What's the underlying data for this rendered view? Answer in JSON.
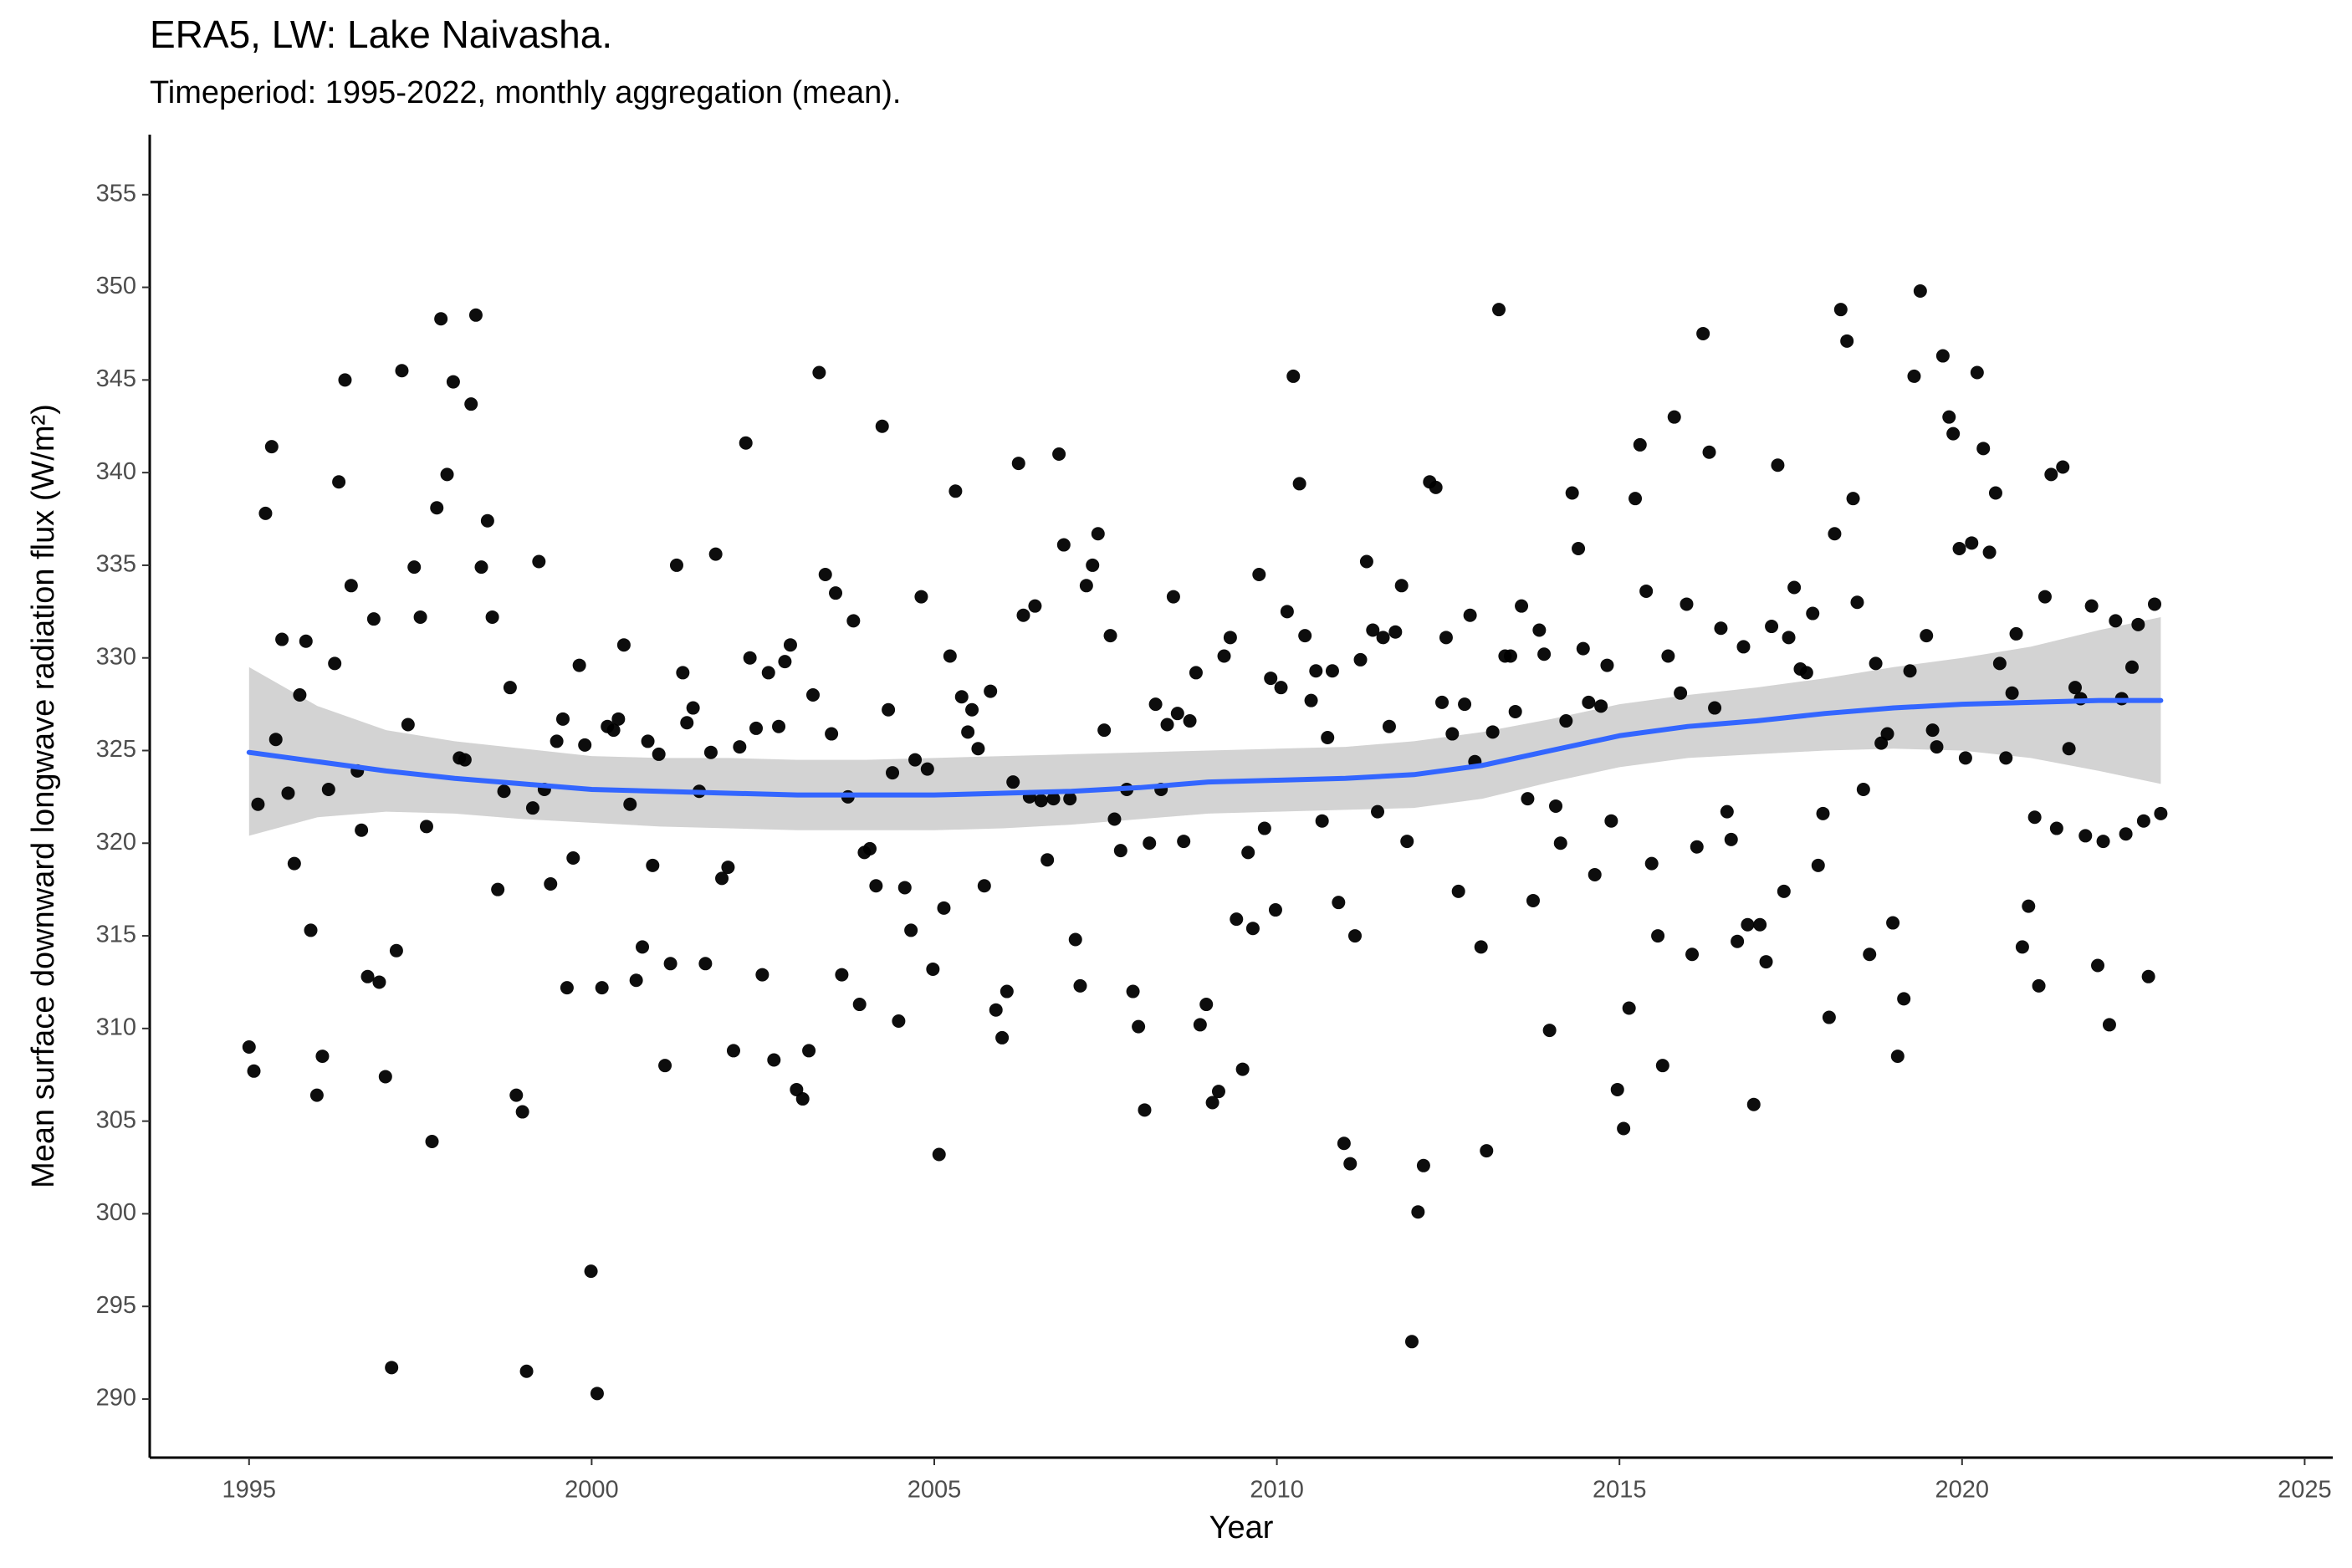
{
  "chart_data": {
    "type": "scatter",
    "title": "ERA5, LW: Lake Naivasha.",
    "subtitle": "Timeperiod: 1995-2022, monthly aggregation (mean).",
    "xlabel": "Year",
    "ylabel": "Mean surface downward longwave radiation flux (W/m²)",
    "color": "#000000",
    "x": [
      1995.0,
      1995.07,
      1995.13,
      1995.24,
      1995.33,
      1995.39,
      1995.48,
      1995.57,
      1995.66,
      1995.74,
      1995.83,
      1995.9,
      1995.99,
      1996.07,
      1996.16,
      1996.25,
      1996.31,
      1996.4,
      1996.49,
      1996.58,
      1996.64,
      1996.73,
      1996.82,
      1996.9,
      1996.99,
      1997.08,
      1997.15,
      1997.23,
      1997.32,
      1997.41,
      1997.5,
      1997.59,
      1997.67,
      1997.74,
      1997.8,
      1997.89,
      1997.98,
      1998.07,
      1998.15,
      1998.24,
      1998.31,
      1998.39,
      1998.48,
      1998.55,
      1998.63,
      1998.72,
      1998.81,
      1998.9,
      1998.99,
      1999.05,
      1999.14,
      1999.23,
      1999.31,
      1999.4,
      1999.49,
      1999.58,
      1999.64,
      1999.73,
      1999.82,
      1999.9,
      1999.99,
      2000.08,
      2000.15,
      2000.23,
      2000.32,
      2000.39,
      2000.47,
      2000.56,
      2000.65,
      2000.74,
      2000.82,
      2000.89,
      2000.98,
      2001.07,
      2001.15,
      2001.24,
      2001.33,
      2001.39,
      2001.48,
      2001.57,
      2001.66,
      2001.74,
      2001.81,
      2001.9,
      2001.99,
      2002.07,
      2002.16,
      2002.25,
      2002.31,
      2002.4,
      2002.49,
      2002.58,
      2002.66,
      2002.73,
      2002.82,
      2002.9,
      2002.99,
      2003.08,
      2003.17,
      2003.23,
      2003.32,
      2003.41,
      2003.5,
      2003.56,
      2003.65,
      2003.74,
      2003.82,
      2003.91,
      2003.98,
      2004.06,
      2004.15,
      2004.24,
      2004.33,
      2004.39,
      2004.48,
      2004.57,
      2004.66,
      2004.72,
      2004.81,
      2004.9,
      2004.98,
      2005.07,
      2005.14,
      2005.23,
      2005.31,
      2005.4,
      2005.49,
      2005.55,
      2005.64,
      2005.73,
      2005.82,
      2005.9,
      2005.99,
      2006.06,
      2006.15,
      2006.23,
      2006.3,
      2006.39,
      2006.47,
      2006.56,
      2006.65,
      2006.74,
      2006.82,
      2006.89,
      2006.98,
      2007.06,
      2007.13,
      2007.22,
      2007.31,
      2007.39,
      2007.48,
      2007.57,
      2007.63,
      2007.72,
      2007.81,
      2007.9,
      2007.98,
      2008.07,
      2008.14,
      2008.23,
      2008.31,
      2008.4,
      2008.49,
      2008.55,
      2008.64,
      2008.73,
      2008.82,
      2008.88,
      2008.97,
      2009.06,
      2009.15,
      2009.23,
      2009.32,
      2009.41,
      2009.5,
      2009.58,
      2009.65,
      2009.74,
      2009.82,
      2009.91,
      2009.98,
      2010.06,
      2010.15,
      2010.24,
      2010.33,
      2010.41,
      2010.5,
      2010.57,
      2010.66,
      2010.74,
      2010.81,
      2010.9,
      2010.98,
      2011.07,
      2011.14,
      2011.22,
      2011.31,
      2011.4,
      2011.47,
      2011.55,
      2011.64,
      2011.73,
      2011.82,
      2011.9,
      2011.97,
      2012.06,
      2012.14,
      2012.23,
      2012.32,
      2012.41,
      2012.47,
      2012.56,
      2012.65,
      2012.74,
      2012.82,
      2012.89,
      2012.98,
      2013.06,
      2013.15,
      2013.24,
      2013.33,
      2013.41,
      2013.48,
      2013.57,
      2013.66,
      2013.74,
      2013.83,
      2013.9,
      2013.98,
      2014.07,
      2014.14,
      2014.22,
      2014.31,
      2014.4,
      2014.47,
      2014.55,
      2014.64,
      2014.73,
      2014.82,
      2014.88,
      2014.97,
      2015.06,
      2015.14,
      2015.23,
      2015.3,
      2015.39,
      2015.47,
      2015.56,
      2015.63,
      2015.71,
      2015.8,
      2015.89,
      2015.98,
      2016.06,
      2016.13,
      2016.22,
      2016.31,
      2016.39,
      2016.48,
      2016.57,
      2016.63,
      2016.72,
      2016.81,
      2016.87,
      2016.96,
      2017.05,
      2017.14,
      2017.22,
      2017.31,
      2017.4,
      2017.47,
      2017.55,
      2017.64,
      2017.73,
      2017.82,
      2017.9,
      2017.97,
      2018.06,
      2018.14,
      2018.23,
      2018.32,
      2018.41,
      2018.47,
      2018.56,
      2018.65,
      2018.74,
      2018.82,
      2018.91,
      2018.99,
      2019.06,
      2019.15,
      2019.24,
      2019.3,
      2019.39,
      2019.48,
      2019.57,
      2019.63,
      2019.72,
      2019.81,
      2019.87,
      2019.96,
      2020.05,
      2020.14,
      2020.22,
      2020.31,
      2020.4,
      2020.49,
      2020.55,
      2020.64,
      2020.73,
      2020.79,
      2020.88,
      2020.97,
      2021.06,
      2021.12,
      2021.21,
      2021.3,
      2021.38,
      2021.47,
      2021.56,
      2021.65,
      2021.73,
      2021.8,
      2021.89,
      2021.98,
      2022.06,
      2022.15,
      2022.24,
      2022.33,
      2022.39,
      2022.48,
      2022.57,
      2022.65,
      2022.72,
      2022.81,
      2022.9
    ],
    "values": [
      309.0,
      307.7,
      322.1,
      337.8,
      341.4,
      325.6,
      331.0,
      322.7,
      318.9,
      328.0,
      330.9,
      315.3,
      306.4,
      308.5,
      322.9,
      329.7,
      339.5,
      345.0,
      333.9,
      323.9,
      320.7,
      312.8,
      332.1,
      312.5,
      307.4,
      291.7,
      314.2,
      345.5,
      326.4,
      334.9,
      332.2,
      320.9,
      303.9,
      338.1,
      348.3,
      339.9,
      344.9,
      324.6,
      324.5,
      343.7,
      348.5,
      334.9,
      337.4,
      332.2,
      317.5,
      322.8,
      328.4,
      306.4,
      305.5,
      291.5,
      321.9,
      335.2,
      322.9,
      317.8,
      325.5,
      326.7,
      312.2,
      319.2,
      329.6,
      325.3,
      296.9,
      290.3,
      312.2,
      326.3,
      326.1,
      326.7,
      330.7,
      322.1,
      312.6,
      314.4,
      325.5,
      318.8,
      324.8,
      308.0,
      313.5,
      335.0,
      329.2,
      326.5,
      327.3,
      322.8,
      313.5,
      324.9,
      335.6,
      318.1,
      318.7,
      308.8,
      325.2,
      341.6,
      330.0,
      326.2,
      312.9,
      329.2,
      308.3,
      326.3,
      329.8,
      330.7,
      306.7,
      306.2,
      308.8,
      328.0,
      345.4,
      334.5,
      325.9,
      333.5,
      312.9,
      322.5,
      332.0,
      311.3,
      319.5,
      319.7,
      317.7,
      342.5,
      327.2,
      323.8,
      310.4,
      317.6,
      315.3,
      324.5,
      333.3,
      324.0,
      313.2,
      303.2,
      316.5,
      330.1,
      339.0,
      327.9,
      326.0,
      327.2,
      325.1,
      317.7,
      328.2,
      311.0,
      309.5,
      312.0,
      323.3,
      340.5,
      332.3,
      322.5,
      332.8,
      322.3,
      319.1,
      322.4,
      341.0,
      336.1,
      322.4,
      314.8,
      312.3,
      333.9,
      335.0,
      336.7,
      326.1,
      331.2,
      321.3,
      319.6,
      322.9,
      312.0,
      310.1,
      305.6,
      320.0,
      327.5,
      322.9,
      326.4,
      333.3,
      327.0,
      320.1,
      326.6,
      329.2,
      310.2,
      311.3,
      306.0,
      306.6,
      330.1,
      331.1,
      315.9,
      307.8,
      319.5,
      315.4,
      334.5,
      320.8,
      328.9,
      316.4,
      328.4,
      332.5,
      345.2,
      339.4,
      331.2,
      327.7,
      329.3,
      321.2,
      325.7,
      329.3,
      316.8,
      303.8,
      302.7,
      315.0,
      329.9,
      335.2,
      331.5,
      321.7,
      331.1,
      326.3,
      331.4,
      333.9,
      320.1,
      293.1,
      300.1,
      302.6,
      339.5,
      339.2,
      327.6,
      331.1,
      325.9,
      317.4,
      327.5,
      332.3,
      324.4,
      314.4,
      303.4,
      326.0,
      348.8,
      330.1,
      330.1,
      327.1,
      332.8,
      322.4,
      316.9,
      331.5,
      330.2,
      309.9,
      322.0,
      320.0,
      326.6,
      338.9,
      335.9,
      330.5,
      327.6,
      318.3,
      327.4,
      329.6,
      321.2,
      306.7,
      304.6,
      311.1,
      338.6,
      341.5,
      333.6,
      318.9,
      315.0,
      308.0,
      330.1,
      343.0,
      328.1,
      332.9,
      314.0,
      319.8,
      347.5,
      341.1,
      327.3,
      331.6,
      321.7,
      320.2,
      314.7,
      330.6,
      315.6,
      305.9,
      315.6,
      313.6,
      331.7,
      340.4,
      317.4,
      331.1,
      333.8,
      329.4,
      329.2,
      332.4,
      318.8,
      321.6,
      310.6,
      336.7,
      348.8,
      347.1,
      338.6,
      333.0,
      322.9,
      314.0,
      329.7,
      325.4,
      325.9,
      315.7,
      308.5,
      311.6,
      329.3,
      345.2,
      349.8,
      331.2,
      326.1,
      325.2,
      346.3,
      343.0,
      342.1,
      335.9,
      324.6,
      336.2,
      345.4,
      341.3,
      335.7,
      338.9,
      329.7,
      324.6,
      328.1,
      331.3,
      314.4,
      316.6,
      321.4,
      312.3,
      333.3,
      339.9,
      320.8,
      340.3,
      325.1,
      328.4,
      327.8,
      320.4,
      332.8,
      313.4,
      320.1,
      310.2,
      332.0,
      327.8,
      320.5,
      329.5,
      331.8,
      321.2,
      312.8,
      332.9,
      321.6
    ],
    "smooth": {
      "color": "#3366ff",
      "band_color": "#d3d3d3",
      "x": [
        1995,
        1996,
        1997,
        1998,
        1999,
        2000,
        2001,
        2002,
        2003,
        2004,
        2005,
        2006,
        2007,
        2008,
        2009,
        2010,
        2011,
        2012,
        2013,
        2014,
        2015,
        2016,
        2017,
        2018,
        2019,
        2020,
        2021,
        2022,
        2022.9
      ],
      "values": [
        324.9,
        324.4,
        323.9,
        323.5,
        323.2,
        322.9,
        322.8,
        322.7,
        322.6,
        322.6,
        322.6,
        322.7,
        322.8,
        323.0,
        323.3,
        323.4,
        323.5,
        323.7,
        324.2,
        325.0,
        325.8,
        326.3,
        326.6,
        327.0,
        327.3,
        327.5,
        327.6,
        327.7,
        327.7
      ],
      "lower": [
        320.4,
        321.4,
        321.7,
        321.6,
        321.3,
        321.1,
        320.9,
        320.8,
        320.7,
        320.7,
        320.7,
        320.8,
        321.0,
        321.3,
        321.6,
        321.7,
        321.8,
        321.9,
        322.4,
        323.3,
        324.1,
        324.6,
        324.8,
        325.0,
        325.1,
        325.0,
        324.6,
        323.9,
        323.2
      ],
      "upper": [
        329.5,
        327.4,
        326.1,
        325.5,
        325.1,
        324.7,
        324.6,
        324.6,
        324.5,
        324.5,
        324.6,
        324.7,
        324.8,
        324.9,
        325.0,
        325.1,
        325.2,
        325.5,
        326.0,
        326.7,
        327.5,
        328.0,
        328.4,
        328.9,
        329.5,
        330.0,
        330.6,
        331.5,
        332.2
      ]
    },
    "xlim": [
      1993.55,
      2025.41
    ],
    "ylim": [
      286.84,
      358.24
    ],
    "xticks": [
      1995,
      2000,
      2005,
      2010,
      2015,
      2020,
      2025
    ],
    "yticks": [
      290,
      295,
      300,
      305,
      310,
      315,
      320,
      325,
      330,
      335,
      340,
      345,
      350,
      355
    ],
    "grid": false
  }
}
